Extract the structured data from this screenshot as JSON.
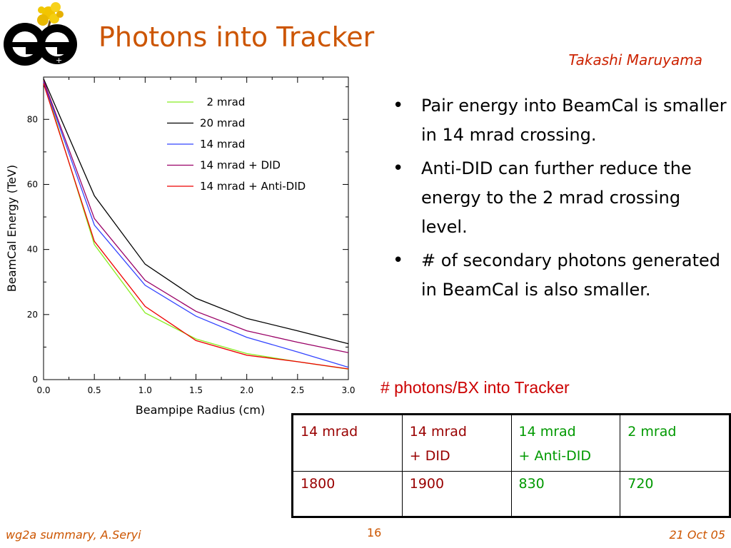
{
  "slide": {
    "title": "Photons into Tracker",
    "author": "Takashi Maruyama",
    "bullets": [
      "Pair energy into BeamCal is smaller in 14 mrad crossing.",
      "Anti-DID can further reduce the energy to the 2 mrad crossing level.",
      "# of secondary photons generated in BeamCal is also smaller."
    ],
    "table_caption": "# photons/BX into Tracker",
    "table": {
      "headers": [
        {
          "line1": "14 mrad",
          "line2": ""
        },
        {
          "line1": "14 mrad",
          "line2": "+ DID"
        },
        {
          "line1": "14 mrad",
          "line2": "+ Anti-DID"
        },
        {
          "line1": "2 mrad",
          "line2": ""
        }
      ],
      "values": [
        "1800",
        "1900",
        "830",
        "720"
      ],
      "colors": [
        "#990000",
        "#990000",
        "#009900",
        "#009900"
      ]
    },
    "footer": {
      "left": "wg2a summary, A.Seryi",
      "page": "16",
      "right": "21 Oct 05"
    }
  },
  "chart_data": {
    "type": "line",
    "xlabel": "Beampipe Radius (cm)",
    "ylabel": "BeamCal Energy (TeV)",
    "xlim": [
      0,
      3.0
    ],
    "ylim": [
      0,
      93
    ],
    "xticks": [
      "0.0",
      "0.5",
      "1.0",
      "1.5",
      "2.0",
      "2.5",
      "3.0"
    ],
    "yticks": [
      "0",
      "20",
      "40",
      "60",
      "80"
    ],
    "grid": false,
    "legend": "top-right",
    "x": [
      0.0,
      0.5,
      1.0,
      1.5,
      2.0,
      2.5,
      3.0
    ],
    "series": [
      {
        "name": "2 mrad",
        "color": "#88ee22",
        "values": [
          92,
          41.5,
          20.5,
          12.5,
          8.0,
          5.5,
          3.2
        ]
      },
      {
        "name": "20 mrad",
        "color": "#000000",
        "values": [
          92.5,
          56.5,
          35.5,
          25.0,
          18.8,
          15.0,
          11.0
        ]
      },
      {
        "name": "14 mrad",
        "color": "#3344ff",
        "values": [
          91.5,
          47.5,
          29.0,
          19.5,
          13.0,
          8.5,
          3.8
        ]
      },
      {
        "name": "14 mrad + DID",
        "color": "#990066",
        "values": [
          92,
          49.5,
          30.5,
          21.0,
          15.0,
          11.5,
          8.3
        ]
      },
      {
        "name": "14 mrad + Anti-DID",
        "color": "#ee0000",
        "values": [
          91,
          42.5,
          22.5,
          12.0,
          7.5,
          5.5,
          3.3
        ]
      }
    ]
  }
}
